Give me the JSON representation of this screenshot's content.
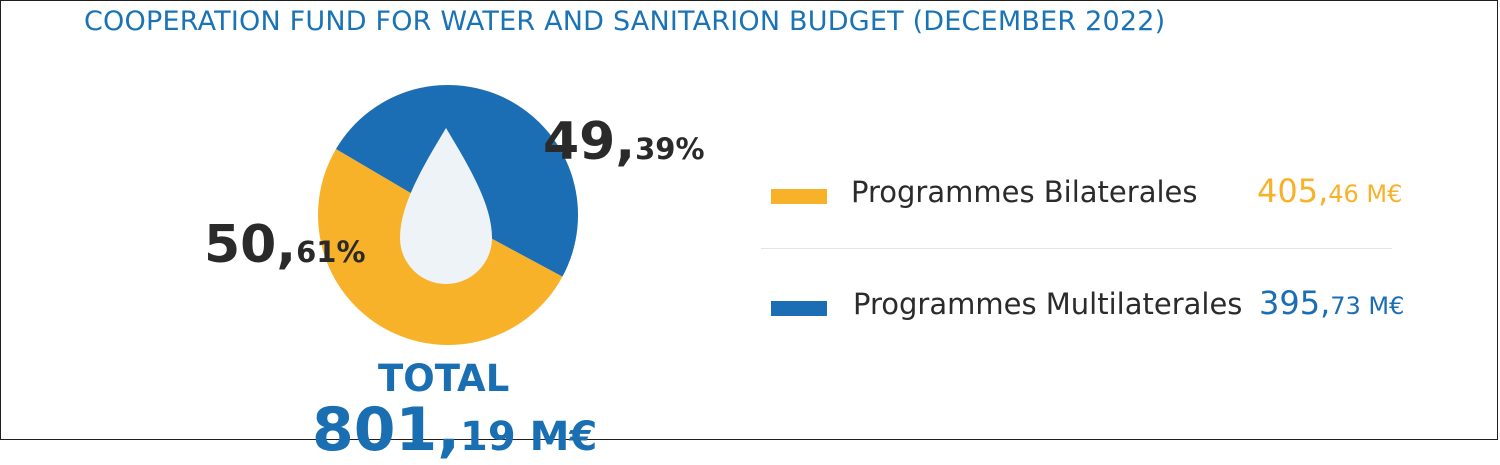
{
  "title": "COOPERATION FUND FOR WATER AND SANITARION BUDGET (DECEMBER 2022)",
  "colors": {
    "bilateral": "#f8b229",
    "multilateral": "#1b6eb4",
    "drop": "#eef3f7",
    "title": "#1a73b6"
  },
  "labels": {
    "multilateral_pct_int": "49,",
    "multilateral_pct_dec": "39%",
    "bilateral_pct_int": "50,",
    "bilateral_pct_dec": "61%"
  },
  "total": {
    "label": "TOTAL",
    "value_int": "801,",
    "value_dec": "19 M€"
  },
  "legend": [
    {
      "name": "Programmes Bilaterales",
      "value_int": "405,",
      "value_dec": "46 M€",
      "color": "#f8b229"
    },
    {
      "name": "Programmes Multilaterales",
      "value_int": "395,",
      "value_dec": "73 M€",
      "color": "#1b6eb4"
    }
  ],
  "chart_data": {
    "type": "pie",
    "title": "COOPERATION FUND FOR WATER AND SANITARION BUDGET (DECEMBER 2022)",
    "unit": "M€",
    "slices": [
      {
        "name": "Programmes Bilaterales",
        "value": 405.46,
        "percent": 50.61,
        "color": "#f8b229"
      },
      {
        "name": "Programmes Multilaterales",
        "value": 395.73,
        "percent": 49.39,
        "color": "#1b6eb4"
      }
    ],
    "total": 801.19
  }
}
